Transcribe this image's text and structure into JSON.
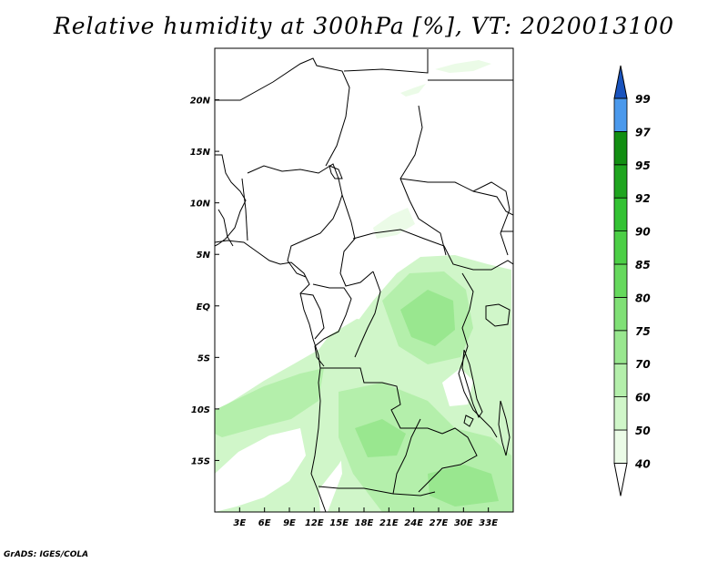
{
  "title": "Relative humidity at 300hPa [%], VT: 2020013100",
  "credit": "GrADS: IGES/COLA",
  "map": {
    "lon_range": [
      0,
      36
    ],
    "lat_range": [
      -20,
      25
    ],
    "lon_ticks": [
      {
        "value": 3,
        "label": "3E"
      },
      {
        "value": 6,
        "label": "6E"
      },
      {
        "value": 9,
        "label": "9E"
      },
      {
        "value": 12,
        "label": "12E"
      },
      {
        "value": 15,
        "label": "15E"
      },
      {
        "value": 18,
        "label": "18E"
      },
      {
        "value": 21,
        "label": "21E"
      },
      {
        "value": 24,
        "label": "24E"
      },
      {
        "value": 27,
        "label": "27E"
      },
      {
        "value": 30,
        "label": "30E"
      },
      {
        "value": 33,
        "label": "33E"
      }
    ],
    "lat_ticks": [
      {
        "value": 20,
        "label": "20N"
      },
      {
        "value": 15,
        "label": "15N"
      },
      {
        "value": 10,
        "label": "10N"
      },
      {
        "value": 5,
        "label": "5N"
      },
      {
        "value": 0,
        "label": "EQ"
      },
      {
        "value": -5,
        "label": "5S"
      },
      {
        "value": -10,
        "label": "10S"
      },
      {
        "value": -15,
        "label": "15S"
      }
    ]
  },
  "colorbar": {
    "levels": [
      "40",
      "50",
      "60",
      "70",
      "75",
      "80",
      "85",
      "90",
      "92",
      "95",
      "97",
      "99"
    ],
    "colors": [
      "#ebfbe7",
      "#d0f6c9",
      "#b4efab",
      "#99e78f",
      "#80e076",
      "#66d95d",
      "#4ccf46",
      "#33c233",
      "#1fa51f",
      "#128e12",
      "#4b99ec",
      "#2b73d6",
      "#1953bd"
    ],
    "lower_color": "#ffffff"
  }
}
